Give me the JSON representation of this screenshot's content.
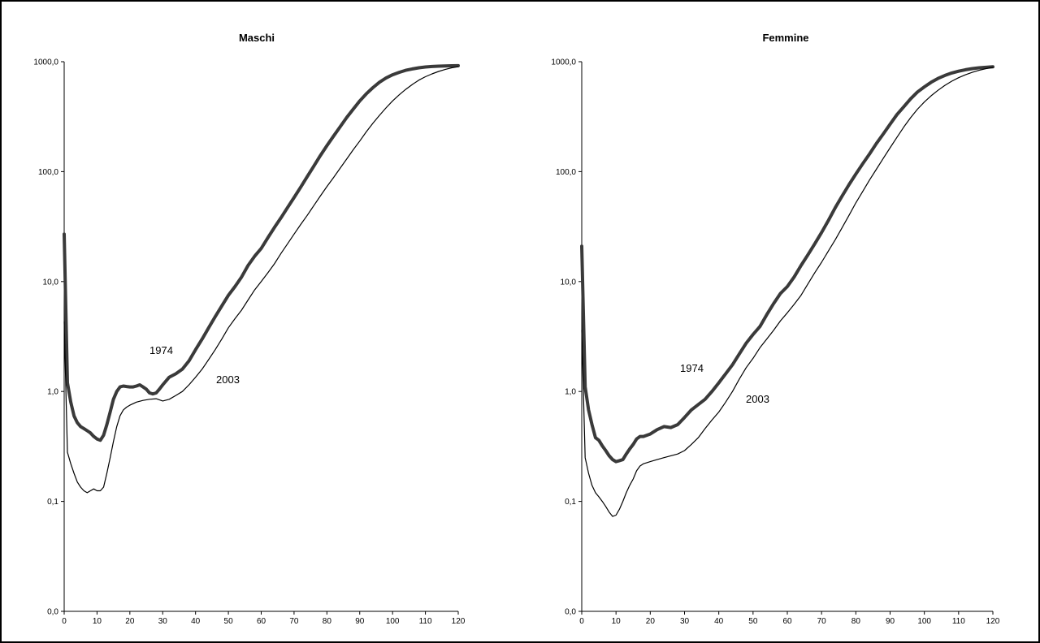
{
  "chart_data": [
    {
      "type": "line",
      "title": "Maschi",
      "xlabel": "",
      "ylabel": "",
      "xlim": [
        0,
        120
      ],
      "ylim": [
        0,
        1000
      ],
      "y_scale": "log",
      "x_ticks": [
        "0",
        "10",
        "20",
        "30",
        "40",
        "50",
        "60",
        "70",
        "80",
        "90",
        "100",
        "110",
        "120"
      ],
      "y_ticks": [
        "0,0",
        "0,1",
        "1,0",
        "10,0",
        "100,0",
        "1000,0"
      ],
      "grid": false,
      "annotations": [
        {
          "text": "1974",
          "x": 27,
          "y": 2.5
        },
        {
          "text": "2003",
          "x": 47,
          "y": 1.4
        }
      ],
      "series": [
        {
          "name": "1974",
          "x": [
            0,
            1,
            2,
            3,
            4,
            5,
            6,
            7,
            8,
            9,
            10,
            11,
            12,
            13,
            14,
            15,
            16,
            17,
            18,
            19,
            20,
            21,
            22,
            23,
            24,
            25,
            26,
            27,
            28,
            29,
            30,
            32,
            34,
            36,
            38,
            40,
            42,
            44,
            46,
            48,
            50,
            52,
            54,
            56,
            58,
            60,
            62,
            64,
            66,
            68,
            70,
            72,
            74,
            76,
            78,
            80,
            82,
            84,
            86,
            88,
            90,
            92,
            94,
            96,
            98,
            100,
            102,
            104,
            106,
            108,
            110,
            112,
            114,
            116,
            118,
            120
          ],
          "y": [
            27,
            1.2,
            0.8,
            0.6,
            0.52,
            0.48,
            0.46,
            0.44,
            0.42,
            0.39,
            0.37,
            0.36,
            0.4,
            0.5,
            0.65,
            0.85,
            1.0,
            1.1,
            1.12,
            1.11,
            1.1,
            1.1,
            1.12,
            1.15,
            1.1,
            1.05,
            0.97,
            0.95,
            0.97,
            1.05,
            1.15,
            1.35,
            1.45,
            1.6,
            1.9,
            2.4,
            3.0,
            3.8,
            4.8,
            6.0,
            7.5,
            9.0,
            11.0,
            14.0,
            17.0,
            20,
            25,
            31,
            38,
            47,
            58,
            72,
            90,
            112,
            140,
            172,
            210,
            255,
            310,
            370,
            440,
            510,
            580,
            650,
            710,
            760,
            800,
            835,
            860,
            880,
            895,
            905,
            910,
            915,
            918,
            920
          ]
        },
        {
          "name": "2003",
          "x": [
            0,
            1,
            2,
            3,
            4,
            5,
            6,
            7,
            8,
            9,
            10,
            11,
            12,
            13,
            14,
            15,
            16,
            17,
            18,
            19,
            20,
            22,
            24,
            26,
            28,
            30,
            32,
            34,
            36,
            38,
            40,
            42,
            44,
            46,
            48,
            50,
            52,
            54,
            56,
            58,
            60,
            62,
            64,
            66,
            68,
            70,
            72,
            74,
            76,
            78,
            80,
            82,
            84,
            86,
            88,
            90,
            92,
            94,
            96,
            98,
            100,
            102,
            104,
            106,
            108,
            110,
            112,
            114,
            116,
            118,
            120
          ],
          "y": [
            4.3,
            0.28,
            0.22,
            0.18,
            0.15,
            0.135,
            0.125,
            0.12,
            0.125,
            0.13,
            0.125,
            0.125,
            0.135,
            0.18,
            0.25,
            0.35,
            0.48,
            0.6,
            0.68,
            0.72,
            0.75,
            0.8,
            0.83,
            0.85,
            0.86,
            0.82,
            0.85,
            0.92,
            1.0,
            1.15,
            1.35,
            1.6,
            1.95,
            2.4,
            3.0,
            3.8,
            4.6,
            5.5,
            6.8,
            8.4,
            10.0,
            12.0,
            14.5,
            18,
            22,
            27,
            33,
            40,
            49,
            60,
            73,
            88,
            107,
            130,
            158,
            190,
            230,
            275,
            325,
            380,
            440,
            500,
            560,
            620,
            680,
            730,
            775,
            815,
            850,
            880,
            900
          ]
        }
      ]
    },
    {
      "type": "line",
      "title": "Femmine",
      "xlabel": "",
      "ylabel": "",
      "xlim": [
        0,
        120
      ],
      "ylim": [
        0,
        1000
      ],
      "y_scale": "log",
      "x_ticks": [
        "0",
        "10",
        "20",
        "30",
        "40",
        "50",
        "60",
        "70",
        "80",
        "90",
        "100",
        "110",
        "120"
      ],
      "y_ticks": [
        "0,0",
        "0,1",
        "1,0",
        "10,0",
        "100,0",
        "1000,0"
      ],
      "grid": false,
      "annotations": [
        {
          "text": "1974",
          "x": 31,
          "y": 2.05
        },
        {
          "text": "2003",
          "x": 50,
          "y": 0.75
        }
      ],
      "series": [
        {
          "name": "1974",
          "x": [
            0,
            1,
            2,
            3,
            4,
            5,
            6,
            7,
            8,
            9,
            10,
            11,
            12,
            13,
            14,
            15,
            16,
            17,
            18,
            19,
            20,
            22,
            24,
            26,
            28,
            30,
            32,
            34,
            36,
            38,
            40,
            42,
            44,
            46,
            48,
            50,
            52,
            54,
            56,
            58,
            60,
            62,
            64,
            66,
            68,
            70,
            72,
            74,
            76,
            78,
            80,
            82,
            84,
            86,
            88,
            90,
            92,
            94,
            96,
            98,
            100,
            102,
            104,
            106,
            108,
            110,
            112,
            114,
            116,
            118,
            120
          ],
          "y": [
            21,
            1.1,
            0.68,
            0.5,
            0.38,
            0.36,
            0.32,
            0.29,
            0.26,
            0.24,
            0.23,
            0.235,
            0.24,
            0.27,
            0.3,
            0.33,
            0.37,
            0.39,
            0.39,
            0.4,
            0.41,
            0.45,
            0.48,
            0.47,
            0.5,
            0.58,
            0.68,
            0.76,
            0.85,
            1.0,
            1.2,
            1.45,
            1.75,
            2.2,
            2.75,
            3.3,
            3.9,
            5.0,
            6.3,
            7.8,
            9.0,
            11,
            14,
            17.5,
            22,
            28,
            36,
            47,
            60,
            76,
            95,
            118,
            145,
            180,
            220,
            270,
            330,
            390,
            460,
            530,
            590,
            650,
            705,
            750,
            790,
            820,
            845,
            865,
            880,
            890,
            900
          ]
        },
        {
          "name": "2003",
          "x": [
            0,
            1,
            2,
            3,
            4,
            5,
            6,
            7,
            8,
            9,
            10,
            11,
            12,
            13,
            14,
            15,
            16,
            17,
            18,
            19,
            20,
            22,
            24,
            26,
            28,
            30,
            32,
            34,
            36,
            38,
            40,
            42,
            44,
            46,
            48,
            50,
            52,
            54,
            56,
            58,
            60,
            62,
            64,
            66,
            68,
            70,
            72,
            74,
            76,
            78,
            80,
            82,
            84,
            86,
            88,
            90,
            92,
            94,
            96,
            98,
            100,
            102,
            104,
            106,
            108,
            110,
            112,
            114,
            116,
            118,
            120
          ],
          "y": [
            3.6,
            0.25,
            0.18,
            0.14,
            0.12,
            0.11,
            0.1,
            0.09,
            0.08,
            0.073,
            0.075,
            0.085,
            0.1,
            0.12,
            0.14,
            0.16,
            0.19,
            0.21,
            0.22,
            0.225,
            0.23,
            0.24,
            0.25,
            0.26,
            0.27,
            0.29,
            0.33,
            0.38,
            0.46,
            0.55,
            0.65,
            0.8,
            1.0,
            1.3,
            1.65,
            2.0,
            2.5,
            3.0,
            3.6,
            4.4,
            5.2,
            6.2,
            7.5,
            9.5,
            12,
            15,
            19,
            24,
            31,
            40,
            52,
            66,
            84,
            105,
            132,
            165,
            205,
            255,
            310,
            370,
            430,
            490,
            550,
            610,
            665,
            715,
            760,
            800,
            835,
            865,
            890
          ]
        }
      ]
    }
  ]
}
